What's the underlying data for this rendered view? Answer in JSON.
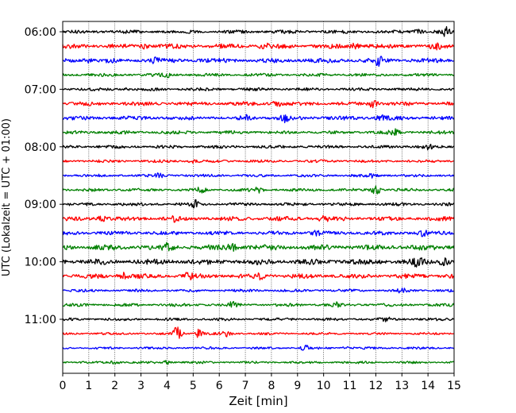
{
  "chart_data": {
    "type": "line",
    "title": "",
    "xlabel": "Zeit  [min]",
    "ylabel": "UTC (Lokalzeit = UTC + 01:00)",
    "xlim": [
      0,
      15
    ],
    "x_ticks": [
      0,
      1,
      2,
      3,
      4,
      5,
      6,
      7,
      8,
      9,
      10,
      11,
      12,
      13,
      14,
      15
    ],
    "y_tick_labels": [
      "06:00",
      "07:00",
      "08:00",
      "09:00",
      "10:00",
      "11:00"
    ],
    "y_tick_rows": [
      0,
      4,
      8,
      12,
      16,
      20
    ],
    "row_interval_minutes": 15,
    "row_count": 24,
    "grid": "vertical dotted",
    "color_cycle": [
      "#000000",
      "#ff0000",
      "#0000ff",
      "#008000"
    ],
    "rows": [
      {
        "start": "06:00",
        "color": "#000000",
        "base_amplitude": 2.2,
        "events": [
          [
            13.6,
            3.5
          ],
          [
            14.7,
            4.5
          ]
        ]
      },
      {
        "start": "06:15",
        "color": "#ff0000",
        "base_amplitude": 3.0,
        "events": [
          [
            3.1,
            2.5
          ],
          [
            7.7,
            3.0
          ],
          [
            11.2,
            2.5
          ],
          [
            14.3,
            2.5
          ]
        ]
      },
      {
        "start": "06:30",
        "color": "#0000ff",
        "base_amplitude": 3.0,
        "events": [
          [
            1.0,
            3.5
          ],
          [
            3.5,
            2.5
          ],
          [
            12.1,
            4.5
          ]
        ]
      },
      {
        "start": "06:45",
        "color": "#008000",
        "base_amplitude": 2.0,
        "events": [
          [
            4.0,
            3.0
          ]
        ]
      },
      {
        "start": "07:00",
        "color": "#000000",
        "base_amplitude": 2.0,
        "events": [
          [
            2.4,
            2.0
          ]
        ]
      },
      {
        "start": "07:15",
        "color": "#ff0000",
        "base_amplitude": 2.6,
        "events": [
          [
            8.2,
            3.5
          ],
          [
            11.9,
            4.0
          ]
        ]
      },
      {
        "start": "07:30",
        "color": "#0000ff",
        "base_amplitude": 2.6,
        "events": [
          [
            7.0,
            2.5
          ],
          [
            8.5,
            3.5
          ],
          [
            12.2,
            2.8
          ]
        ]
      },
      {
        "start": "07:45",
        "color": "#008000",
        "base_amplitude": 2.2,
        "events": [
          [
            12.7,
            3.0
          ]
        ]
      },
      {
        "start": "08:00",
        "color": "#000000",
        "base_amplitude": 2.0,
        "events": [
          [
            14.0,
            2.5
          ]
        ]
      },
      {
        "start": "08:15",
        "color": "#ff0000",
        "base_amplitude": 1.8,
        "events": [
          [
            5.0,
            2.0
          ]
        ]
      },
      {
        "start": "08:30",
        "color": "#0000ff",
        "base_amplitude": 1.8,
        "events": [
          [
            3.7,
            2.0
          ],
          [
            11.9,
            2.0
          ]
        ]
      },
      {
        "start": "08:45",
        "color": "#008000",
        "base_amplitude": 2.0,
        "events": [
          [
            5.3,
            2.5
          ],
          [
            7.5,
            2.5
          ],
          [
            12.0,
            5.0
          ]
        ]
      },
      {
        "start": "09:00",
        "color": "#000000",
        "base_amplitude": 2.0,
        "events": [
          [
            5.1,
            4.0
          ]
        ]
      },
      {
        "start": "09:15",
        "color": "#ff0000",
        "base_amplitude": 2.8,
        "events": [
          [
            1.5,
            3.0
          ],
          [
            4.3,
            2.5
          ],
          [
            10.0,
            3.0
          ]
        ]
      },
      {
        "start": "09:30",
        "color": "#0000ff",
        "base_amplitude": 2.5,
        "events": [
          [
            9.7,
            3.5
          ],
          [
            13.8,
            3.5
          ]
        ]
      },
      {
        "start": "09:45",
        "color": "#008000",
        "base_amplitude": 3.5,
        "events": [
          [
            4.0,
            3.5
          ],
          [
            6.5,
            3.5
          ]
        ]
      },
      {
        "start": "10:00",
        "color": "#000000",
        "base_amplitude": 3.5,
        "events": [
          [
            13.6,
            4.5
          ],
          [
            14.6,
            4.0
          ]
        ]
      },
      {
        "start": "10:15",
        "color": "#ff0000",
        "base_amplitude": 3.0,
        "events": [
          [
            2.3,
            3.5
          ],
          [
            4.8,
            3.0
          ],
          [
            7.6,
            3.0
          ]
        ]
      },
      {
        "start": "10:30",
        "color": "#0000ff",
        "base_amplitude": 1.8,
        "events": [
          [
            13.0,
            2.0
          ]
        ]
      },
      {
        "start": "10:45",
        "color": "#008000",
        "base_amplitude": 2.0,
        "events": [
          [
            6.5,
            3.0
          ],
          [
            10.4,
            5.0
          ]
        ]
      },
      {
        "start": "11:00",
        "color": "#000000",
        "base_amplitude": 1.8,
        "events": [
          [
            12.4,
            2.5
          ]
        ]
      },
      {
        "start": "11:15",
        "color": "#ff0000",
        "base_amplitude": 1.5,
        "events": [
          [
            4.4,
            9.0
          ],
          [
            5.2,
            5.0
          ],
          [
            6.3,
            3.0
          ]
        ]
      },
      {
        "start": "11:30",
        "color": "#0000ff",
        "base_amplitude": 1.5,
        "events": [
          [
            9.3,
            3.0
          ],
          [
            10.8,
            2.0
          ]
        ]
      },
      {
        "start": "11:45",
        "color": "#008000",
        "base_amplitude": 1.5,
        "events": [
          [
            2.0,
            2.0
          ],
          [
            4.0,
            2.0
          ]
        ]
      }
    ]
  }
}
